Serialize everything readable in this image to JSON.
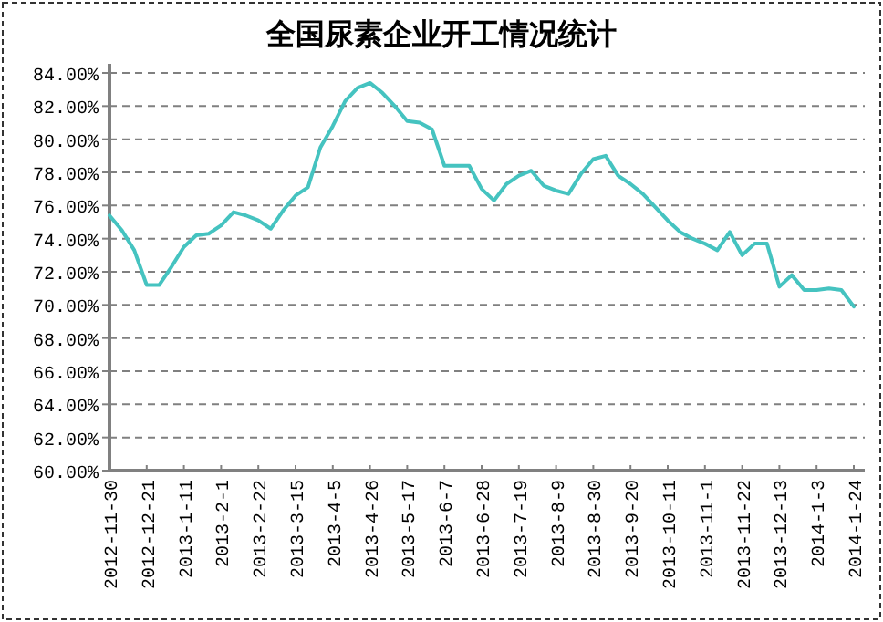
{
  "chart_data": {
    "type": "line",
    "title": "全国尿素企业开工情况统计",
    "categories": [
      "2012-11-30",
      null,
      null,
      "2012-12-21",
      null,
      null,
      "2013-1-11",
      null,
      null,
      "2013-2-1",
      null,
      null,
      "2013-2-22",
      null,
      null,
      "2013-3-15",
      null,
      null,
      "2013-4-5",
      null,
      null,
      "2013-4-26",
      null,
      null,
      "2013-5-17",
      null,
      null,
      "2013-6-7",
      null,
      null,
      "2013-6-28",
      null,
      null,
      "2013-7-19",
      null,
      null,
      "2013-8-9",
      null,
      null,
      "2013-8-30",
      null,
      null,
      "2013-9-20",
      null,
      null,
      "2013-10-11",
      null,
      null,
      "2013-11-1",
      null,
      null,
      "2013-11-22",
      null,
      null,
      "2013-12-13",
      null,
      null,
      "2014-1-3",
      null,
      null,
      "2014-1-24"
    ],
    "values": [
      75.4,
      74.5,
      73.3,
      71.2,
      71.2,
      72.3,
      73.5,
      74.2,
      74.3,
      74.8,
      75.6,
      75.4,
      75.1,
      74.6,
      75.7,
      76.6,
      77.1,
      79.5,
      80.8,
      82.3,
      83.1,
      83.4,
      82.8,
      82.0,
      81.1,
      81.0,
      80.6,
      78.4,
      78.4,
      78.4,
      77.0,
      76.3,
      77.3,
      77.8,
      78.1,
      77.2,
      76.9,
      76.7,
      77.9,
      78.8,
      79.0,
      77.8,
      77.3,
      76.7,
      75.9,
      75.1,
      74.4,
      74.0,
      73.7,
      73.3,
      74.4,
      73.0,
      73.7,
      73.7,
      71.1,
      71.8,
      70.9,
      70.9,
      71.0,
      70.9,
      69.9
    ],
    "color": "#45c3c0",
    "ylim": [
      60,
      84
    ],
    "yticks": [
      {
        "value": 60,
        "label": "60.00%"
      },
      {
        "value": 62,
        "label": "62.00%"
      },
      {
        "value": 64,
        "label": "64.00%"
      },
      {
        "value": 66,
        "label": "66.00%"
      },
      {
        "value": 68,
        "label": "68.00%"
      },
      {
        "value": 70,
        "label": "70.00%"
      },
      {
        "value": 72,
        "label": "72.00%"
      },
      {
        "value": 74,
        "label": "74.00%"
      },
      {
        "value": 76,
        "label": "76.00%"
      },
      {
        "value": 78,
        "label": "78.00%"
      },
      {
        "value": 80,
        "label": "80.00%"
      },
      {
        "value": 82,
        "label": "82.00%"
      },
      {
        "value": 84,
        "label": "84.00%"
      }
    ],
    "grid": "y",
    "marker": "none",
    "line_style": "solid"
  }
}
